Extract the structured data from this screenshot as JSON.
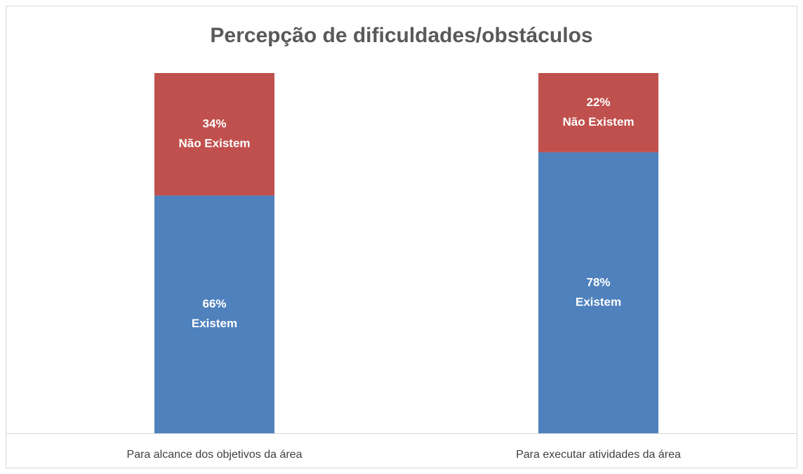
{
  "chart_data": {
    "type": "stacked_bar",
    "title": "Percepção de dificuldades/obstáculos",
    "categories": [
      "Para alcance dos objetivos da área",
      "Para executar atividades da área"
    ],
    "series": [
      {
        "name": "Existem",
        "color": "#4f81bd",
        "values": [
          66,
          78
        ],
        "value_labels": [
          "66%",
          "78%"
        ]
      },
      {
        "name": "Não Existem",
        "color": "#c0504d",
        "values": [
          34,
          22
        ],
        "value_labels": [
          "34%",
          "22%"
        ]
      }
    ],
    "ylim": [
      0,
      100
    ]
  }
}
